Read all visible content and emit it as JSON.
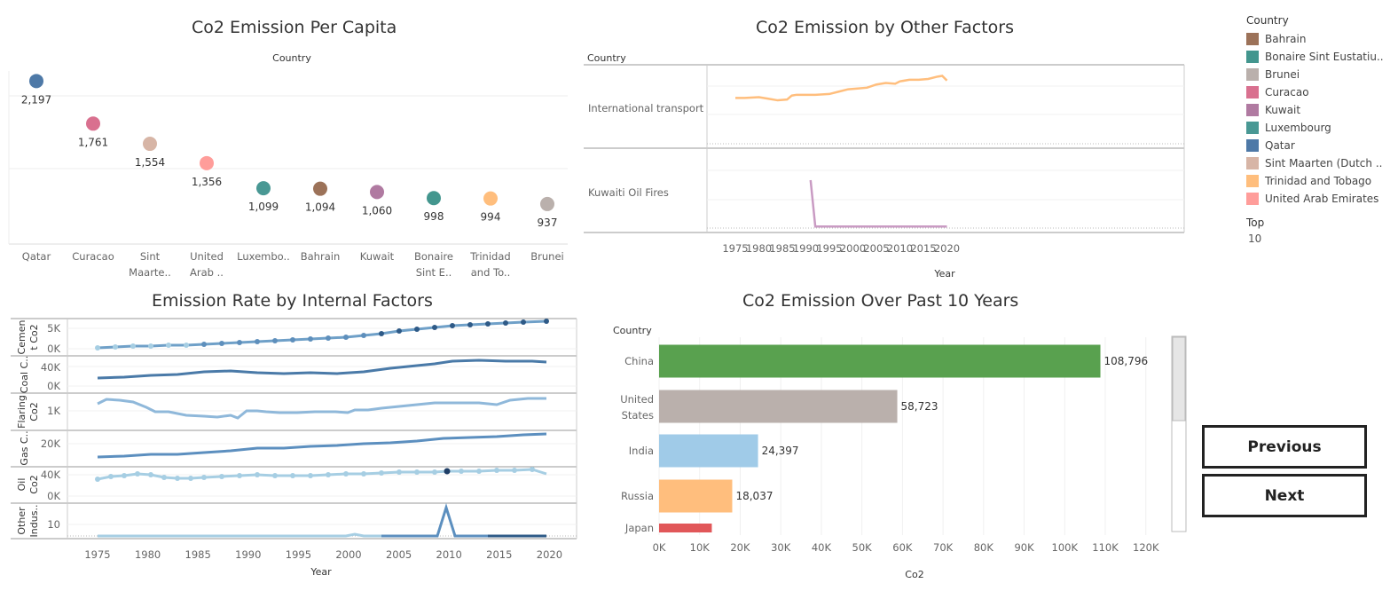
{
  "legend": {
    "title": "Country",
    "items": [
      {
        "label": "Bahrain",
        "color": "#9C7259"
      },
      {
        "label": "Bonaire Sint Eustatiu..",
        "color": "#43968E"
      },
      {
        "label": "Brunei",
        "color": "#BAB0AC"
      },
      {
        "label": "Curacao",
        "color": "#D9708F"
      },
      {
        "label": "Kuwait",
        "color": "#B07AA1"
      },
      {
        "label": "Luxembourg",
        "color": "#499894"
      },
      {
        "label": "Qatar",
        "color": "#4E79A7"
      },
      {
        "label": "Sint Maarten (Dutch ..",
        "color": "#D7B5A6"
      },
      {
        "label": "Trinidad and Tobago",
        "color": "#FFBE7D"
      },
      {
        "label": "United Arab Emirates",
        "color": "#FF9D9A"
      }
    ],
    "top_label": "Top",
    "top_value": "10"
  },
  "buttons": {
    "previous": "Previous",
    "next": "Next"
  },
  "per_capita": {
    "title": "Co2 Emission Per Capita",
    "header": "Country",
    "chart_data": {
      "type": "scatter",
      "categories": [
        "Qatar",
        "Curacao",
        "Sint Maarte..",
        "United Arab ..",
        "Luxembo..",
        "Bahrain",
        "Kuwait",
        "Bonaire Sint E..",
        "Trinidad and To..",
        "Brunei"
      ],
      "values": [
        2197,
        1761,
        1554,
        1356,
        1099,
        1094,
        1060,
        998,
        994,
        937
      ],
      "value_labels": [
        "2,197",
        "1,761",
        "1,554",
        "1,356",
        "1,099",
        "1,094",
        "1,060",
        "998",
        "994",
        "937"
      ],
      "colors": [
        "#4E79A7",
        "#D9708F",
        "#D7B5A6",
        "#FF9D9A",
        "#499894",
        "#9C7259",
        "#B07AA1",
        "#43968E",
        "#FFBE7D",
        "#BAB0AC"
      ]
    }
  },
  "other_factors": {
    "title": "Co2 Emission by Other Factors",
    "header": "Country",
    "xlabel": "Year",
    "x_ticks": [
      "1975",
      "1980",
      "1985",
      "1990",
      "1995",
      "2000",
      "2005",
      "2010",
      "2015",
      "2020"
    ],
    "chart_data": {
      "type": "line",
      "rows": [
        {
          "label": "International transport",
          "color": "#FFBE7D",
          "x": [
            1975,
            1977,
            1980,
            1982,
            1984,
            1986,
            1987,
            1988,
            1990,
            1992,
            1995,
            1997,
            1999,
            2001,
            2003,
            2005,
            2007,
            2009,
            2010,
            2012,
            2014,
            2016,
            2018,
            2019,
            2020
          ],
          "y": [
            0.58,
            0.58,
            0.59,
            0.57,
            0.55,
            0.56,
            0.61,
            0.62,
            0.62,
            0.62,
            0.63,
            0.66,
            0.69,
            0.7,
            0.71,
            0.75,
            0.77,
            0.76,
            0.79,
            0.81,
            0.81,
            0.82,
            0.85,
            0.86,
            0.8
          ]
        },
        {
          "label": "Kuwaiti Oil Fires",
          "color": "#C99BC3",
          "x": [
            1991,
            1992,
            1995,
            2000,
            2005,
            2010,
            2015,
            2020
          ],
          "y": [
            0.6,
            0.02,
            0.02,
            0.02,
            0.02,
            0.02,
            0.02,
            0.02
          ]
        }
      ]
    }
  },
  "internal": {
    "title": "Emission Rate by Internal Factors",
    "xlabel": "Year",
    "x_ticks": [
      "1975",
      "1980",
      "1985",
      "1990",
      "1995",
      "2000",
      "2005",
      "2010",
      "2015",
      "2020"
    ],
    "rows": [
      {
        "label": "Cemen t Co2",
        "ticks": [
          "5K",
          "0K"
        ]
      },
      {
        "label": "Coal C..",
        "ticks": [
          "40K",
          "0K"
        ]
      },
      {
        "label": "Flaring Co2",
        "ticks": [
          "1K"
        ]
      },
      {
        "label": "Gas C..",
        "ticks": [
          "20K"
        ]
      },
      {
        "label": "Oil Co2",
        "ticks": [
          "40K",
          "0K"
        ]
      },
      {
        "label": "Other Indus..",
        "ticks": [
          "10"
        ]
      }
    ]
  },
  "past10": {
    "title": "Co2 Emission Over Past 10 Years",
    "header": "Country",
    "xlabel": "Co2",
    "x_ticks": [
      "0K",
      "10K",
      "20K",
      "30K",
      "40K",
      "50K",
      "60K",
      "70K",
      "80K",
      "90K",
      "100K",
      "110K",
      "120K"
    ],
    "chart_data": {
      "type": "bar",
      "categories": [
        "China",
        "United States",
        "India",
        "Russia",
        "Japan"
      ],
      "values": [
        108796,
        58723,
        24397,
        18037,
        13000
      ],
      "value_labels": [
        "108,796",
        "58,723",
        "24,397",
        "18,037",
        ""
      ],
      "colors": [
        "#59A14F",
        "#BAB0AC",
        "#A0CBE8",
        "#FFBE7D",
        "#E15759"
      ],
      "xlim": [
        0,
        120000
      ]
    }
  }
}
